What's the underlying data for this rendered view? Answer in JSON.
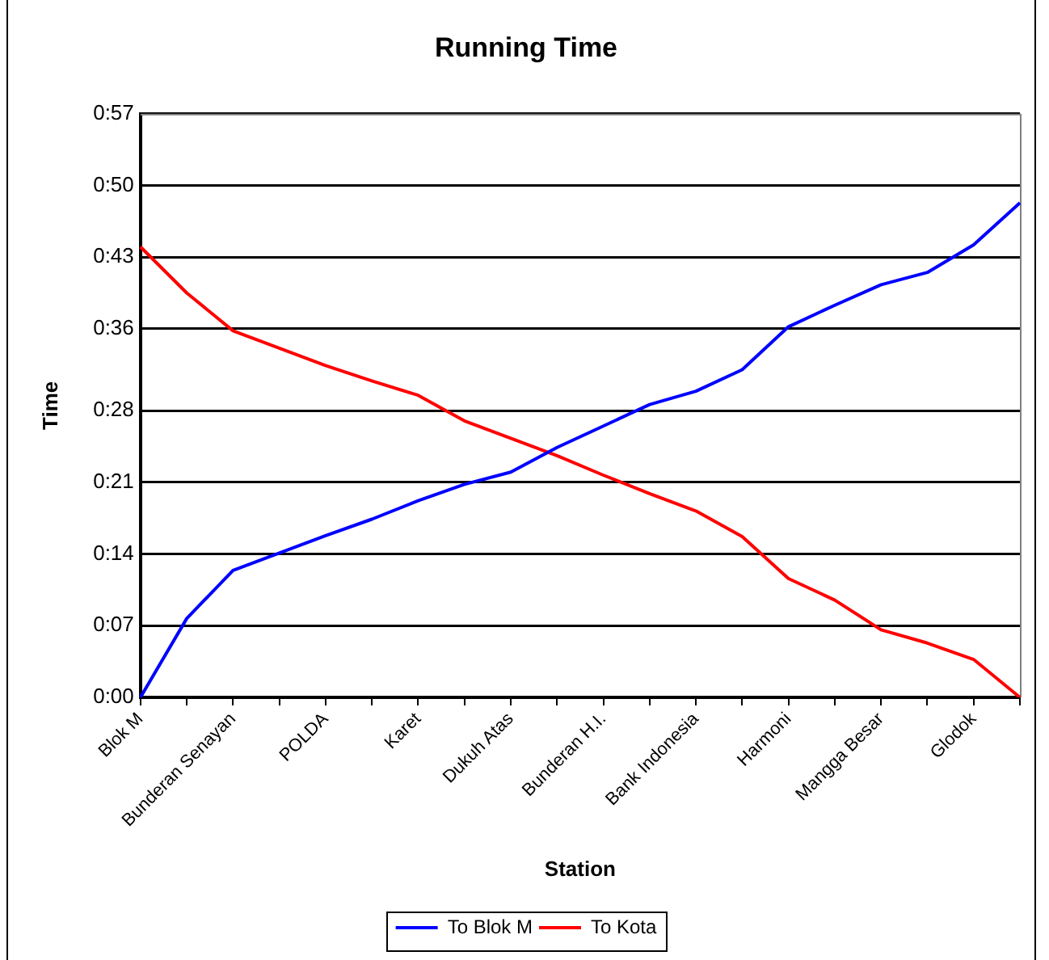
{
  "chart_data": {
    "type": "line",
    "title": "Running Time",
    "xlabel": "Station",
    "ylabel": "Time",
    "categories": [
      "Blok M",
      null,
      "Bunderan Senayan",
      null,
      "POLDA",
      null,
      "Karet",
      null,
      "Dukuh Atas",
      null,
      "Bunderan H.I.",
      null,
      "Bank Indonesia",
      null,
      "Harmoni",
      null,
      "Mangga Besar",
      null,
      "Glodok",
      null
    ],
    "series": [
      {
        "name": "To Blok M",
        "color": "#0000ff",
        "values": [
          0,
          7.7,
          12.4,
          14.1,
          15.8,
          17.4,
          19.2,
          20.8,
          22.0,
          24.4,
          26.5,
          28.6,
          29.9,
          32.0,
          36.2,
          38.3,
          40.3,
          41.5,
          44.2,
          48.3
        ]
      },
      {
        "name": "To Kota",
        "color": "#ff0000",
        "values": [
          44.0,
          39.5,
          35.8,
          34.1,
          32.4,
          30.9,
          29.5,
          27.0,
          25.3,
          23.6,
          21.7,
          19.9,
          18.2,
          15.7,
          11.6,
          9.5,
          6.6,
          5.3,
          3.7,
          0
        ]
      }
    ],
    "ylim": [
      0,
      57
    ],
    "yticks": [
      {
        "value": 0,
        "label": "0:00"
      },
      {
        "value": 7,
        "label": "0:07"
      },
      {
        "value": 14,
        "label": "0:14"
      },
      {
        "value": 21,
        "label": "0:21"
      },
      {
        "value": 28,
        "label": "0:28"
      },
      {
        "value": 36,
        "label": "0:36"
      },
      {
        "value": 43,
        "label": "0:43"
      },
      {
        "value": 50,
        "label": "0:50"
      },
      {
        "value": 57,
        "label": "0:57"
      }
    ],
    "grid": "y",
    "legend": "bottom",
    "marker": "none",
    "line_style": "solid"
  }
}
